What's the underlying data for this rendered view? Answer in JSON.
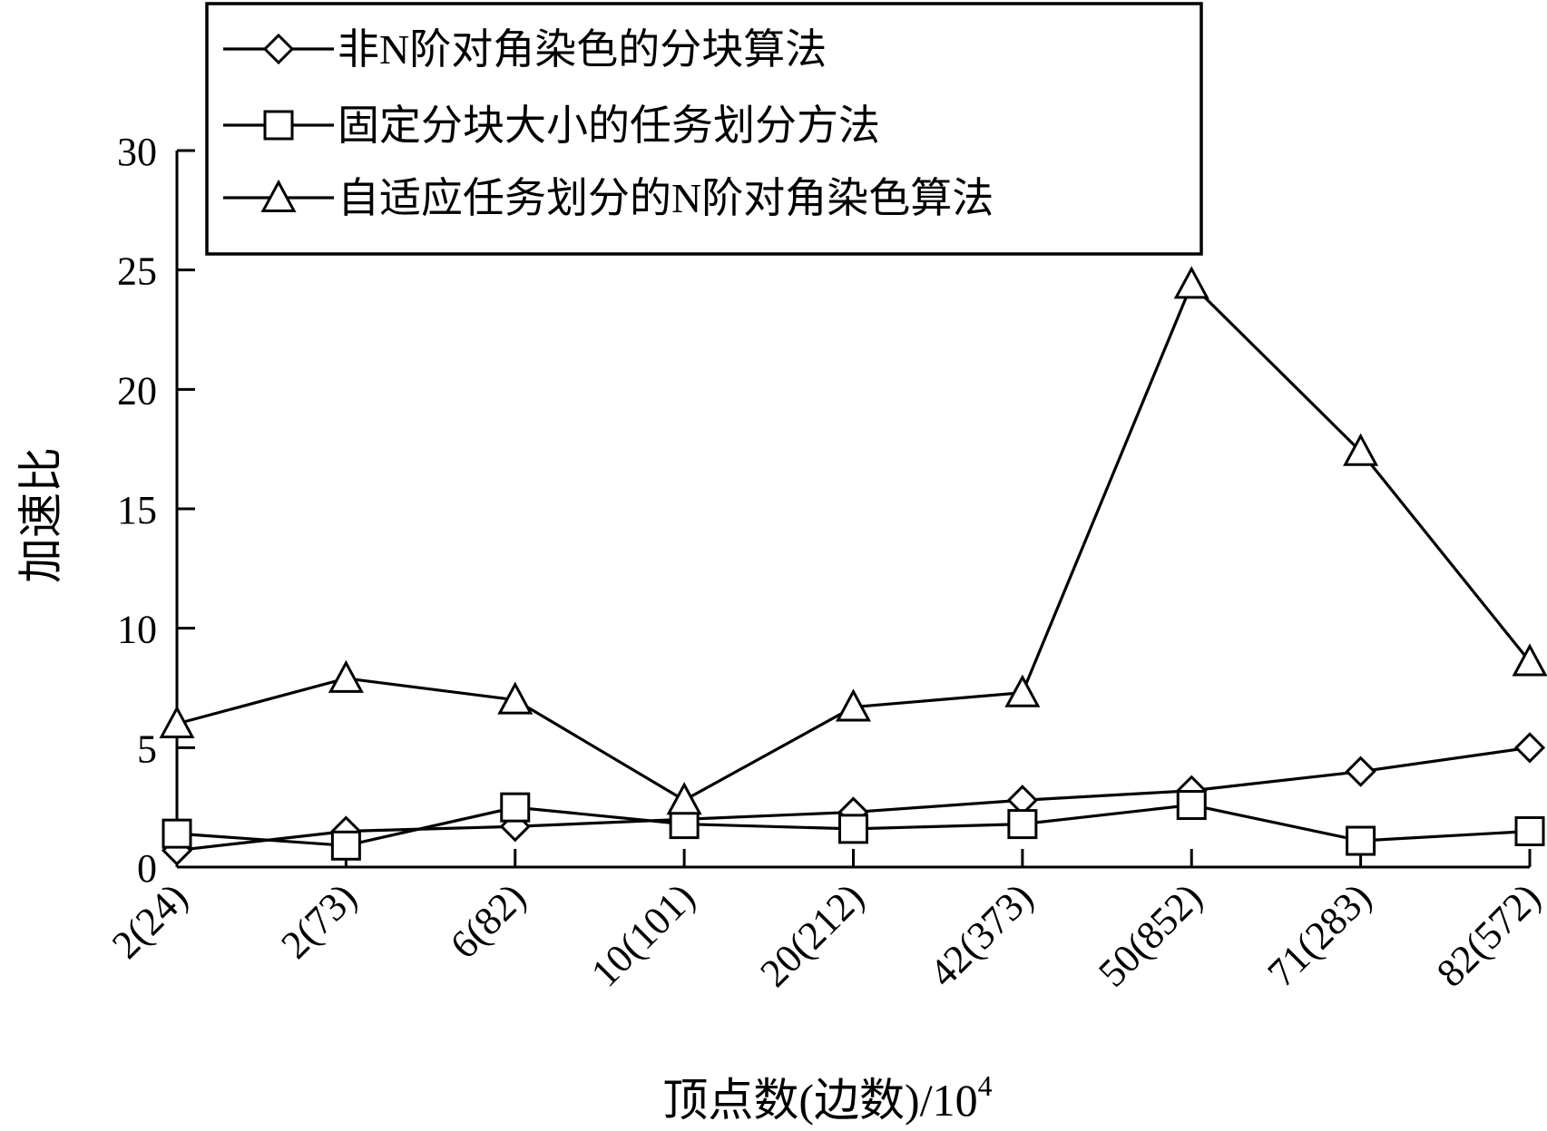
{
  "chart_data": {
    "type": "line",
    "title": "",
    "xlabel": "顶点数(边数)/10",
    "xlabel_sup": "4",
    "ylabel": "加速比",
    "ylim": [
      0,
      30
    ],
    "yticks": [
      0,
      5,
      10,
      15,
      20,
      25,
      30
    ],
    "categories": [
      "2(24)",
      "2(73)",
      "6(82)",
      "10(101)",
      "20(212)",
      "42(373)",
      "50(852)",
      "71(283)",
      "82(572)"
    ],
    "grid": false,
    "legend_position": "top",
    "series": [
      {
        "name": "非N阶对角染色的分块算法",
        "marker": "diamond",
        "values": [
          0.7,
          1.5,
          1.7,
          2.0,
          2.3,
          2.8,
          3.2,
          4.0,
          5.0
        ]
      },
      {
        "name": "固定分块大小的任务划分方法",
        "marker": "square",
        "values": [
          1.4,
          0.9,
          2.5,
          1.8,
          1.6,
          1.8,
          2.6,
          1.1,
          1.5
        ]
      },
      {
        "name": "自适应任务划分的N阶对角染色算法",
        "marker": "triangle",
        "values": [
          6.0,
          7.9,
          7.0,
          2.8,
          6.7,
          7.3,
          24.4,
          17.4,
          8.6
        ]
      }
    ]
  }
}
